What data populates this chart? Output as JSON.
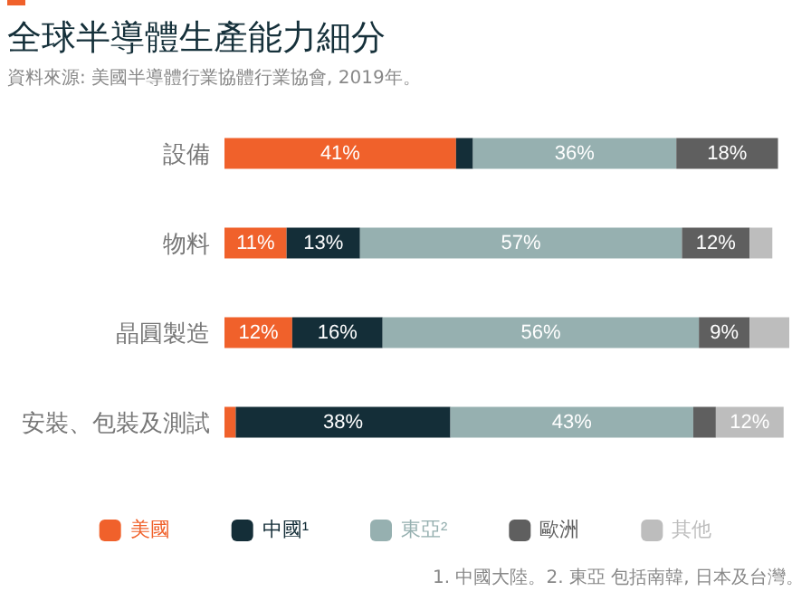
{
  "chart_data": {
    "type": "bar",
    "orientation": "horizontal",
    "stacked": true,
    "title": "全球半導體生產能力細分",
    "subtitle": "資料來源: 美國半導體行業協體行業協會, 2019年。",
    "categories": [
      "設備",
      "物料",
      "晶圓製造",
      "安裝、包裝及測試"
    ],
    "series": [
      {
        "name": "美國",
        "color": "#f0612b",
        "values": [
          41,
          11,
          12,
          2
        ],
        "value_labels": [
          "41%",
          "11%",
          "12%",
          null
        ]
      },
      {
        "name": "中國¹",
        "color": "#142e38",
        "values": [
          3,
          13,
          16,
          38
        ],
        "value_labels": [
          null,
          "13%",
          "16%",
          "38%"
        ]
      },
      {
        "name": "東亞²",
        "color": "#96b0b0",
        "values": [
          36,
          57,
          56,
          43
        ],
        "value_labels": [
          "36%",
          "57%",
          "56%",
          "43%"
        ]
      },
      {
        "name": "歐洲",
        "color": "#5f5f5f",
        "values": [
          18,
          12,
          9,
          4
        ],
        "value_labels": [
          "18%",
          "12%",
          "9%",
          null
        ]
      },
      {
        "name": "其他",
        "color": "#bdbdbd",
        "values": [
          null,
          4,
          7,
          12
        ],
        "value_labels": [
          null,
          null,
          null,
          "12%"
        ]
      }
    ],
    "xlim": [
      0,
      100
    ],
    "tick_labels": "y",
    "grid": false,
    "legend": "bottom",
    "annotations": [
      "1. 中國大陸。2. 東亞 包括南韓, 日本及台灣。"
    ]
  }
}
